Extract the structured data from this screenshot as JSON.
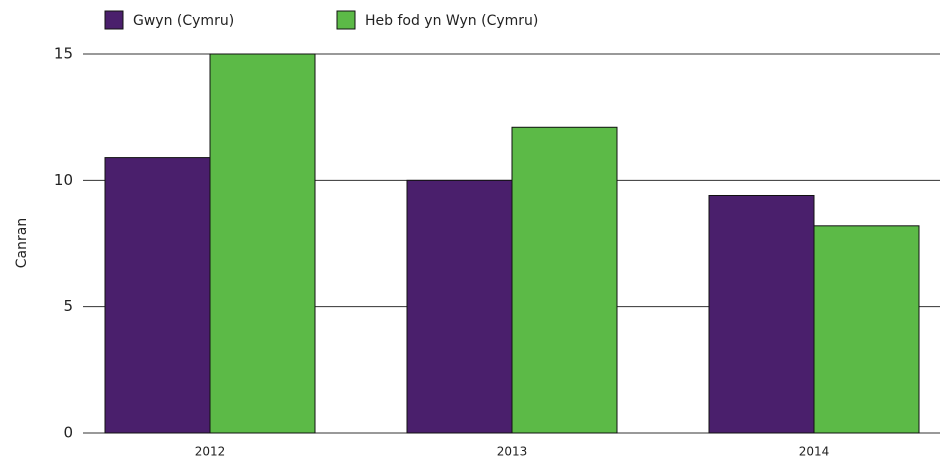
{
  "chart_data": {
    "type": "bar",
    "y_label": "Canran",
    "categories": [
      "2012",
      "2013",
      "2014"
    ],
    "series": [
      {
        "name": "Gwyn (Cymru)",
        "color": "#4a1f6c",
        "values": [
          10.9,
          10.0,
          9.4
        ]
      },
      {
        "name": "Heb fod yn Wyn (Cymru)",
        "color": "#5cba47",
        "values": [
          15.0,
          12.1,
          8.2
        ]
      }
    ],
    "ylim": [
      0,
      15
    ],
    "yticks": [
      0,
      5,
      10,
      15
    ],
    "grid": true,
    "legend": "top"
  }
}
